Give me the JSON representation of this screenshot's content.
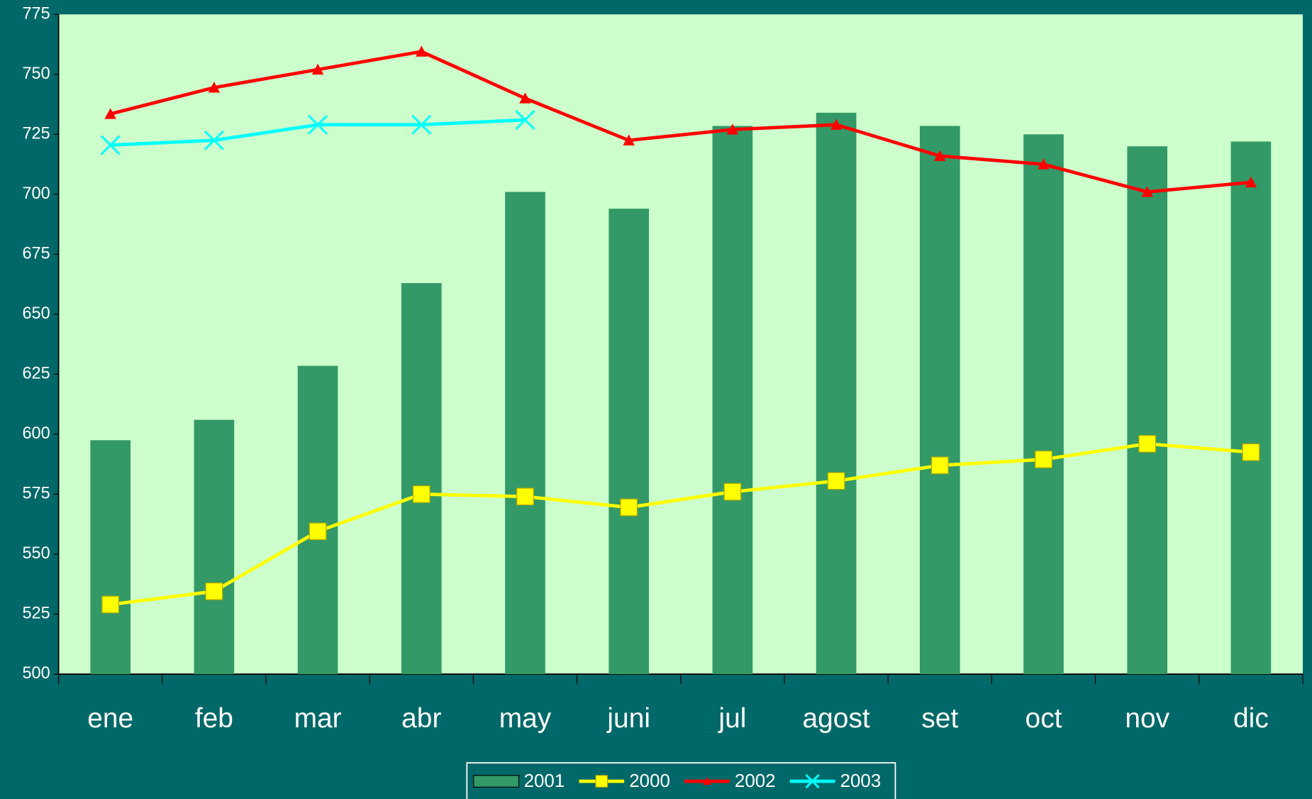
{
  "chart_data": {
    "type": "bar",
    "categories": [
      "ene",
      "feb",
      "mar",
      "abr",
      "may",
      "juni",
      "jul",
      "agost",
      "set",
      "oct",
      "nov",
      "dic"
    ],
    "series": [
      {
        "name": "2001",
        "type": "bar",
        "color": "#339966",
        "values": [
          597.5,
          606,
          628.5,
          663,
          701,
          694,
          728.5,
          734,
          728.5,
          725,
          720,
          722
        ]
      },
      {
        "name": "2000",
        "type": "line",
        "marker": "square",
        "color": "#ffff00",
        "values": [
          529,
          534.5,
          559.5,
          575,
          574,
          569.5,
          576,
          580.5,
          587,
          589.5,
          596,
          592.5
        ]
      },
      {
        "name": "2002",
        "type": "line",
        "marker": "triangle",
        "color": "#ff0000",
        "values": [
          733.5,
          744.5,
          752,
          759.5,
          740,
          722.5,
          727,
          729,
          716,
          712.5,
          701,
          705
        ]
      },
      {
        "name": "2003",
        "type": "line",
        "marker": "x",
        "color": "#00ffff",
        "values": [
          720.5,
          722.5,
          729,
          729,
          731,
          null,
          null,
          null,
          null,
          null,
          null,
          null
        ]
      }
    ],
    "ylim": [
      500,
      775
    ],
    "yticks": [
      500,
      525,
      550,
      575,
      600,
      625,
      650,
      675,
      700,
      725,
      750,
      775
    ],
    "legend": "bottom"
  }
}
